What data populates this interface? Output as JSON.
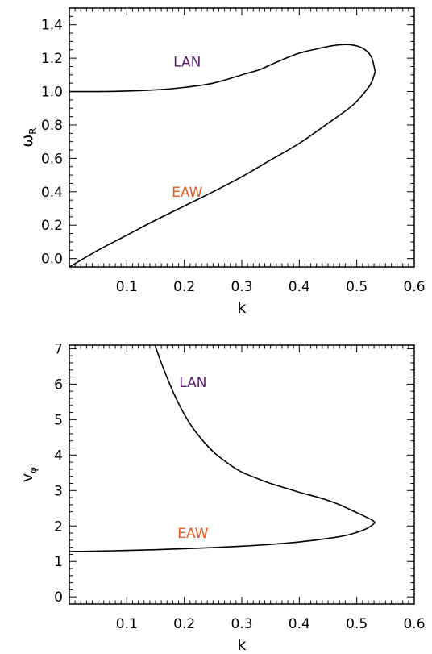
{
  "chart_data": [
    {
      "type": "line",
      "xlabel": "k",
      "ylabel": "ω",
      "ylabel_sub": "R",
      "xlim": [
        0.0,
        0.6
      ],
      "ylim": [
        -0.05,
        1.5
      ],
      "x_ticks": [
        0.1,
        0.2,
        0.3,
        0.4,
        0.5,
        0.6
      ],
      "x_tick_labels": [
        "0.1",
        "0.2",
        "0.3",
        "0.4",
        "0.5",
        "0.6"
      ],
      "y_ticks": [
        0.0,
        0.2,
        0.4,
        0.6,
        0.8,
        1.0,
        1.2,
        1.4
      ],
      "y_tick_labels": [
        "0.0",
        "0.2",
        "0.4",
        "0.6",
        "0.8",
        "1.0",
        "1.2",
        "1.4"
      ],
      "series": [
        {
          "color": "#000000",
          "x": [
            0.532,
            0.525,
            0.51,
            0.49,
            0.47,
            0.45,
            0.43,
            0.4,
            0.37,
            0.35,
            0.33,
            0.3,
            0.25,
            0.2,
            0.15,
            0.1,
            0.05,
            0.0
          ],
          "y": [
            1.12,
            1.21,
            1.26,
            1.28,
            1.28,
            1.27,
            1.255,
            1.23,
            1.19,
            1.16,
            1.13,
            1.1,
            1.05,
            1.025,
            1.01,
            1.003,
            1.0,
            1.0
          ]
        },
        {
          "color": "#000000",
          "x": [
            0.0,
            0.05,
            0.1,
            0.15,
            0.2,
            0.25,
            0.3,
            0.35,
            0.4,
            0.45,
            0.49,
            0.51,
            0.525,
            0.532
          ],
          "y": [
            -0.05,
            0.05,
            0.14,
            0.23,
            0.315,
            0.4,
            0.49,
            0.59,
            0.69,
            0.81,
            0.91,
            0.98,
            1.05,
            1.12
          ]
        }
      ],
      "annotations": [
        {
          "text": "LAN",
          "x": 0.205,
          "y": 1.18,
          "color": "#5b1a6e"
        },
        {
          "text": "EAW",
          "x": 0.205,
          "y": 0.4,
          "color": "#ea5a1c"
        }
      ]
    },
    {
      "type": "line",
      "xlabel": "k",
      "ylabel": "v",
      "ylabel_sub": "φ",
      "xlim": [
        0.0,
        0.6
      ],
      "ylim": [
        -0.2,
        7.1
      ],
      "x_ticks": [
        0.1,
        0.2,
        0.3,
        0.4,
        0.5,
        0.6
      ],
      "x_tick_labels": [
        "0.1",
        "0.2",
        "0.3",
        "0.4",
        "0.5",
        "0.6"
      ],
      "y_ticks": [
        0,
        1,
        2,
        3,
        4,
        5,
        6,
        7
      ],
      "y_tick_labels": [
        "0",
        "1",
        "2",
        "3",
        "4",
        "5",
        "6",
        "7"
      ],
      "series": [
        {
          "color": "#000000",
          "x": [
            0.149,
            0.16,
            0.18,
            0.2,
            0.22,
            0.25,
            0.28,
            0.3,
            0.33,
            0.35,
            0.38,
            0.4,
            0.43,
            0.45,
            0.47,
            0.49,
            0.51,
            0.525,
            0.532
          ],
          "y": [
            7.1,
            6.6,
            5.8,
            5.15,
            4.65,
            4.1,
            3.72,
            3.52,
            3.32,
            3.2,
            3.05,
            2.95,
            2.82,
            2.72,
            2.6,
            2.45,
            2.3,
            2.18,
            2.1
          ]
        },
        {
          "color": "#000000",
          "x": [
            0.0,
            0.05,
            0.1,
            0.15,
            0.2,
            0.25,
            0.3,
            0.35,
            0.4,
            0.45,
            0.48,
            0.5,
            0.515,
            0.525,
            0.532
          ],
          "y": [
            1.28,
            1.29,
            1.31,
            1.33,
            1.36,
            1.39,
            1.43,
            1.48,
            1.55,
            1.65,
            1.73,
            1.82,
            1.91,
            2.0,
            2.1
          ]
        }
      ],
      "annotations": [
        {
          "text": "LAN",
          "x": 0.215,
          "y": 6.05,
          "color": "#5b1a6e"
        },
        {
          "text": "EAW",
          "x": 0.215,
          "y": 1.8,
          "color": "#ea5a1c"
        }
      ]
    }
  ]
}
